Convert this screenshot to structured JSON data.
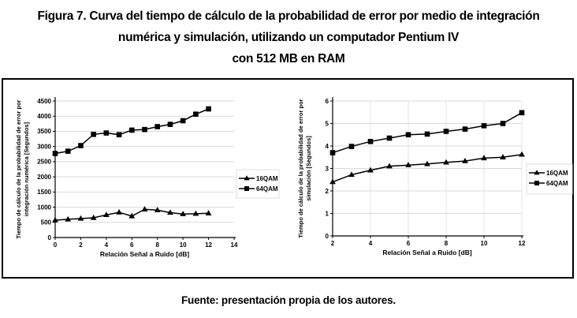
{
  "title": {
    "line1": "Figura 7. Curva del tiempo de cálculo de la probabilidad de error por medio de integración",
    "line2": "numérica y simulación, utilizando un computador Pentium IV",
    "line3": "con 512 MB en RAM"
  },
  "footer": {
    "source": "Fuente: presentación propia de los autores."
  },
  "colors": {
    "line": "#000000",
    "h_grid": "#d9d9d9",
    "v_grid": "#e6e6e6",
    "legend_border": "#dddddd"
  },
  "chart_data": [
    {
      "type": "line",
      "title": "",
      "xlabel": "Relación Señal a Ruido [dB]",
      "ylabel": "Tiempo de cálculo de la probabilidad de error por integración numérica [Segundos]",
      "ylabel_lines": [
        "Tiempo de cálculo de la probabilidad de error por",
        "integración numérica [Segundos]"
      ],
      "x": [
        0,
        1,
        2,
        3,
        4,
        5,
        6,
        7,
        8,
        9,
        10,
        11,
        12
      ],
      "series": [
        {
          "name": "16QAM",
          "marker": "triangle",
          "values": [
            570,
            600,
            625,
            650,
            745,
            830,
            705,
            930,
            905,
            820,
            775,
            785,
            800
          ]
        },
        {
          "name": "64QAM",
          "marker": "square",
          "values": [
            2770,
            2845,
            3030,
            3400,
            3445,
            3390,
            3540,
            3560,
            3655,
            3730,
            3850,
            4065,
            4240
          ]
        }
      ],
      "xlim": [
        0,
        14
      ],
      "ylim": [
        0,
        4500
      ],
      "xticks": [
        0,
        2,
        4,
        6,
        8,
        10,
        12,
        14
      ],
      "yticks": [
        0,
        500,
        1000,
        1500,
        2000,
        2500,
        3000,
        3500,
        4000,
        4500
      ],
      "grid": "horizontal",
      "legend_position": "right",
      "legend": [
        "16QAM",
        "64QAM"
      ]
    },
    {
      "type": "line",
      "title": "",
      "xlabel": "Relación Señal a Ruido [dB]",
      "ylabel": "Tiempo de cálculo de la probabilidad de error por simulación [Segundos]",
      "ylabel_lines": [
        "Tiempo de cálculo de la probabilidad de error por",
        "simulación [Segundos]"
      ],
      "x": [
        2,
        3,
        4,
        5,
        6,
        7,
        8,
        9,
        10,
        11,
        12
      ],
      "series": [
        {
          "name": "16QAM",
          "marker": "triangle",
          "values": [
            2.4,
            2.72,
            2.92,
            3.1,
            3.15,
            3.2,
            3.27,
            3.33,
            3.46,
            3.5,
            3.62
          ]
        },
        {
          "name": "64QAM",
          "marker": "square",
          "values": [
            3.7,
            3.98,
            4.2,
            4.35,
            4.5,
            4.53,
            4.65,
            4.75,
            4.9,
            5.0,
            5.48
          ]
        }
      ],
      "xlim": [
        2,
        12
      ],
      "ylim": [
        0,
        6
      ],
      "xticks": [
        2,
        4,
        6,
        8,
        10,
        12
      ],
      "yticks": [
        0,
        1,
        2,
        3,
        4,
        5,
        6
      ],
      "grid": "both",
      "legend_position": "right",
      "legend": [
        "16QAM",
        "64QAM"
      ]
    }
  ]
}
